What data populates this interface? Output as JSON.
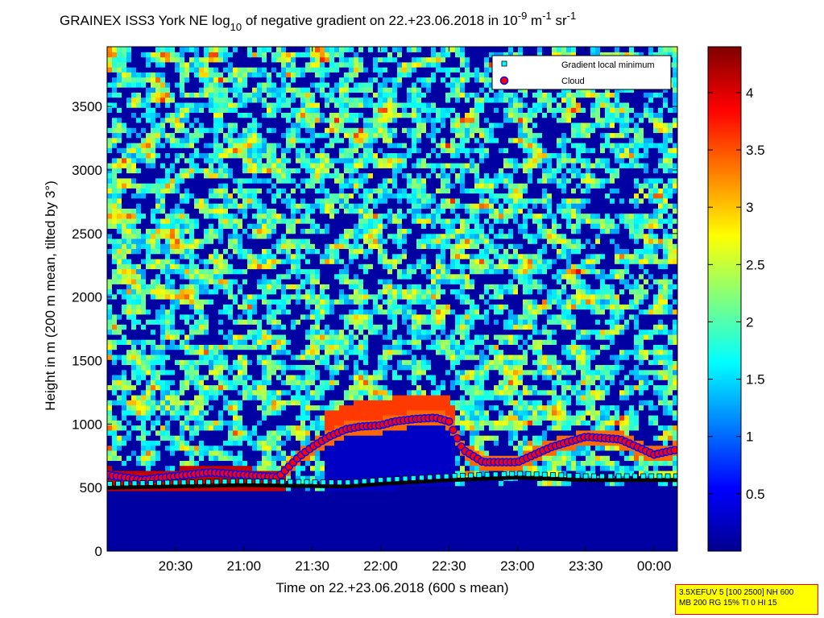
{
  "chart_data": {
    "type": "heatmap",
    "title": {
      "part1": "GRAINEX ISS3 York NE log",
      "sub1": "10",
      "part2": " of negative gradient on 22.+23.06.2018 in 10",
      "sup1": "-9",
      "part3": " m",
      "sup2": "-1",
      "part4": " sr",
      "sup3": "-1"
    },
    "xlabel": "Time on 22.+23.06.2018 (600 s mean)",
    "ylabel": "Height in m (200 m mean, tilted by 3°)",
    "x_range_hours": [
      20.0,
      24.17
    ],
    "y_range_m": [
      0,
      3970
    ],
    "x_ticks": [
      {
        "label": "20:30",
        "hour": 20.5
      },
      {
        "label": "21:00",
        "hour": 21.0
      },
      {
        "label": "21:30",
        "hour": 21.5
      },
      {
        "label": "22:00",
        "hour": 22.0
      },
      {
        "label": "22:30",
        "hour": 22.5
      },
      {
        "label": "23:00",
        "hour": 23.0
      },
      {
        "label": "23:30",
        "hour": 23.5
      },
      {
        "label": "00:00",
        "hour": 24.0
      }
    ],
    "y_ticks": [
      {
        "label": "0",
        "value": 0
      },
      {
        "label": "500",
        "value": 500
      },
      {
        "label": "1000",
        "value": 1000
      },
      {
        "label": "1500",
        "value": 1500
      },
      {
        "label": "2000",
        "value": 2000
      },
      {
        "label": "2500",
        "value": 2500
      },
      {
        "label": "3000",
        "value": 3000
      },
      {
        "label": "3500",
        "value": 3500
      }
    ],
    "colorbar": {
      "range": [
        0,
        4.4
      ],
      "ticks": [
        {
          "label": "0.5",
          "value": 0.5
        },
        {
          "label": "1",
          "value": 1.0
        },
        {
          "label": "1.5",
          "value": 1.5
        },
        {
          "label": "2",
          "value": 2.0
        },
        {
          "label": "2.5",
          "value": 2.5
        },
        {
          "label": "3",
          "value": 3.0
        },
        {
          "label": "3.5",
          "value": 3.5
        },
        {
          "label": "4",
          "value": 4.0
        }
      ]
    },
    "legend": {
      "position": "top-right",
      "entries": [
        {
          "label": "Gradient local minimum",
          "marker": "square",
          "color": "#00ffff"
        },
        {
          "label": "Cloud",
          "marker": "circle",
          "color": "#ff0000"
        }
      ]
    },
    "boundary_layer_top_m": [
      {
        "hour": 20.0,
        "value": 500
      },
      {
        "hour": 21.0,
        "value": 520
      },
      {
        "hour": 21.75,
        "value": 510
      },
      {
        "hour": 22.0,
        "value": 530
      },
      {
        "hour": 22.5,
        "value": 560
      },
      {
        "hour": 23.0,
        "value": 580
      },
      {
        "hour": 23.5,
        "value": 560
      },
      {
        "hour": 24.17,
        "value": 560
      }
    ],
    "cloud_base_m": [
      {
        "hour": 20.0,
        "value": 600
      },
      {
        "hour": 20.25,
        "value": 560
      },
      {
        "hour": 20.5,
        "value": 590
      },
      {
        "hour": 20.75,
        "value": 620
      },
      {
        "hour": 21.0,
        "value": 600
      },
      {
        "hour": 21.25,
        "value": 580
      },
      {
        "hour": 21.4,
        "value": 740
      },
      {
        "hour": 21.5,
        "value": 820
      },
      {
        "hour": 21.62,
        "value": 900
      },
      {
        "hour": 21.75,
        "value": 960
      },
      {
        "hour": 21.85,
        "value": 980
      },
      {
        "hour": 22.0,
        "value": 990
      },
      {
        "hour": 22.1,
        "value": 1020
      },
      {
        "hour": 22.25,
        "value": 1040
      },
      {
        "hour": 22.4,
        "value": 1050
      },
      {
        "hour": 22.5,
        "value": 1020
      },
      {
        "hour": 22.6,
        "value": 800
      },
      {
        "hour": 22.75,
        "value": 700
      },
      {
        "hour": 23.0,
        "value": 700
      },
      {
        "hour": 23.25,
        "value": 820
      },
      {
        "hour": 23.5,
        "value": 900
      },
      {
        "hour": 23.75,
        "value": 880
      },
      {
        "hour": 24.0,
        "value": 760
      },
      {
        "hour": 24.17,
        "value": 800
      }
    ]
  },
  "info_box": {
    "line1": "3.5XEFUV 5 [100 2500] NH 600",
    "line2": "MB 200 RG 15% TI 0 HI 15"
  }
}
